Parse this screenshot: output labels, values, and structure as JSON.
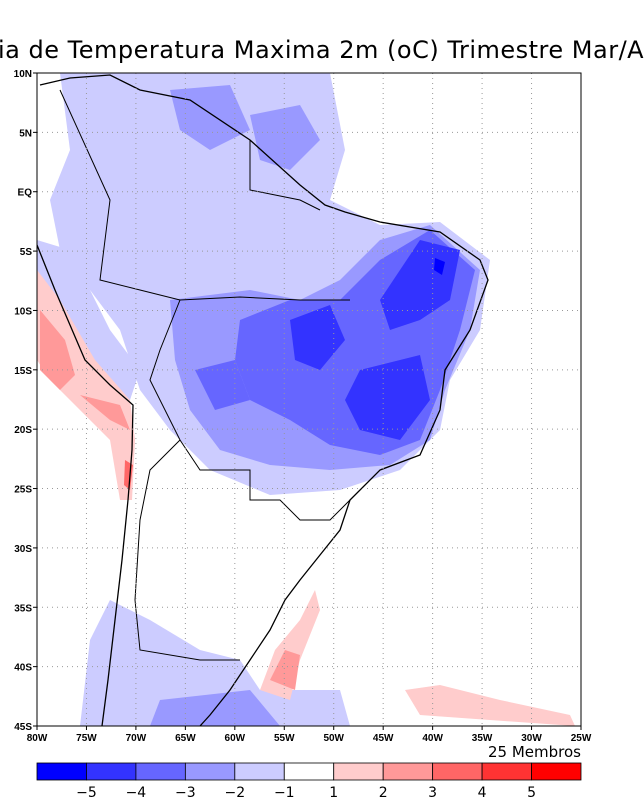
{
  "title": "ia de Temperatura Maxima 2m (oC) Trimestre Mar/A",
  "subtitle": "25 Membros",
  "lat_labels": [
    "10N",
    "5N",
    "EQ",
    "5S",
    "10S",
    "15S",
    "20S",
    "25S",
    "30S",
    "35S",
    "40S",
    "45S"
  ],
  "lon_labels": [
    "80W",
    "75W",
    "70W",
    "65W",
    "60W",
    "55W",
    "50W",
    "45W",
    "40W",
    "35W",
    "30W",
    "25W"
  ],
  "colorbar": {
    "colors": [
      "#0000ff",
      "#3333ff",
      "#6666ff",
      "#9999ff",
      "#ccccff",
      "#ffffff",
      "#ffcccc",
      "#ff9999",
      "#ff6666",
      "#ff3333",
      "#ff0000"
    ],
    "labels": [
      "-5",
      "-4",
      "-3",
      "-2",
      "-1",
      "1",
      "2",
      "3",
      "4",
      "5"
    ]
  }
}
